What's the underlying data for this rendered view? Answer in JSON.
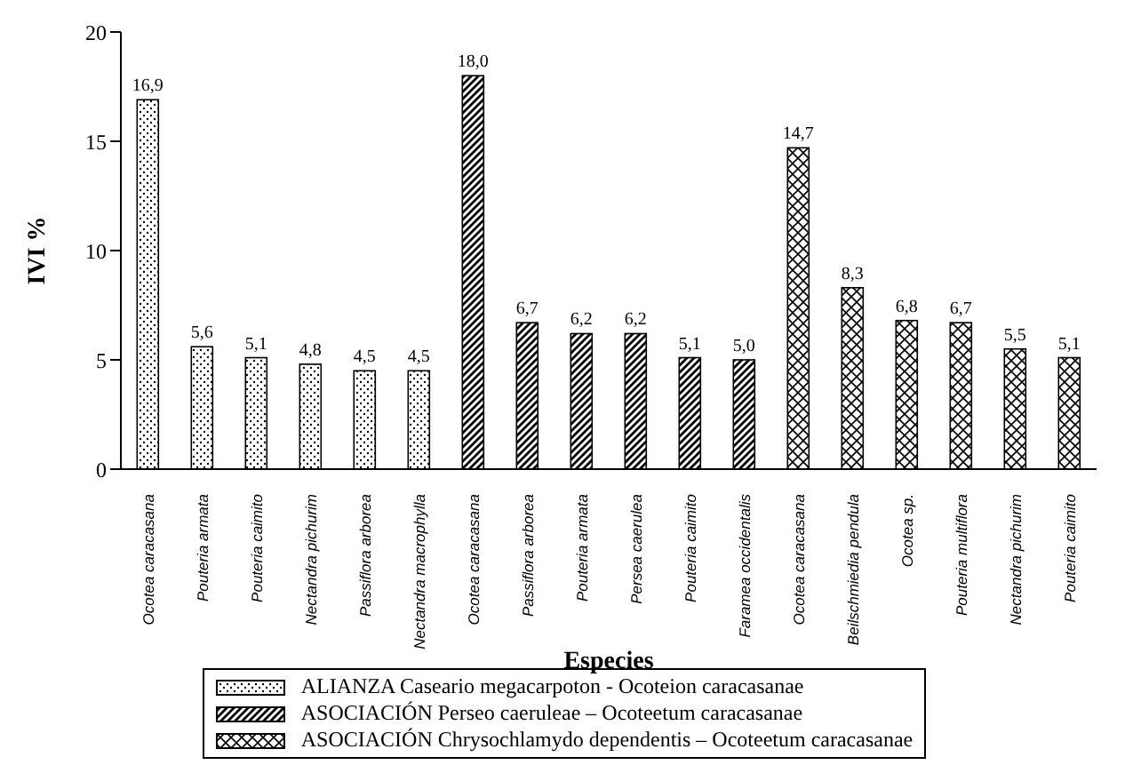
{
  "chart_data": {
    "type": "bar",
    "xlabel": "Especies",
    "ylabel": "IVI %",
    "categories": [
      "Ocotea caracasana",
      "Pouteria armata",
      "Pouteria caimito",
      "Nectandra pichurim",
      "Passiflora arborea",
      "Nectandra macrophylla",
      "Ocotea caracasana",
      "Passiflora arborea",
      "Pouteria armata",
      "Persea caerulea",
      "Pouteria caimito",
      "Faramea occidentalis",
      "Ocotea caracasana",
      "Beilschmiedia pendula",
      "Ocotea sp.",
      "Pouteria multiflora",
      "Nectandra pichurim",
      "Pouteria caimito"
    ],
    "series": [
      {
        "name": "ALIANZA Caseario megacarpoton - Ocoteion caracasanae",
        "color": "#000000",
        "values": [
          16.9,
          5.6,
          5.1,
          4.8,
          4.5,
          4.5,
          null,
          null,
          null,
          null,
          null,
          null,
          null,
          null,
          null,
          null,
          null,
          null
        ],
        "value_labels": [
          "16,9",
          "5,6",
          "5,1",
          "4,8",
          "4,5",
          "4,5",
          null,
          null,
          null,
          null,
          null,
          null,
          null,
          null,
          null,
          null,
          null,
          null
        ]
      },
      {
        "name": "ASOCIACIÓN Perseo caeruleae – Ocoteetum caracasanae",
        "color": "#000000",
        "values": [
          null,
          null,
          null,
          null,
          null,
          null,
          18.0,
          6.7,
          6.2,
          6.2,
          5.1,
          5.0,
          null,
          null,
          null,
          null,
          null,
          null
        ],
        "value_labels": [
          null,
          null,
          null,
          null,
          null,
          null,
          "18,0",
          "6,7",
          "6,2",
          "6,2",
          "5,1",
          "5,0",
          null,
          null,
          null,
          null,
          null,
          null
        ]
      },
      {
        "name": "ASOCIACIÓN Chrysochlamydo dependentis – Ocoteetum caracasanae",
        "color": "#000000",
        "values": [
          null,
          null,
          null,
          null,
          null,
          null,
          null,
          null,
          null,
          null,
          null,
          null,
          14.7,
          8.3,
          6.8,
          6.7,
          5.5,
          5.1
        ],
        "value_labels": [
          null,
          null,
          null,
          null,
          null,
          null,
          null,
          null,
          null,
          null,
          null,
          null,
          "14,7",
          "8,3",
          "6,8",
          "6,7",
          "5,5",
          "5,1"
        ]
      }
    ],
    "stacked": true,
    "ylim": [
      0,
      20
    ],
    "yticks": [
      0,
      5,
      10,
      15,
      20
    ],
    "grid": false,
    "legend": "bottom"
  }
}
